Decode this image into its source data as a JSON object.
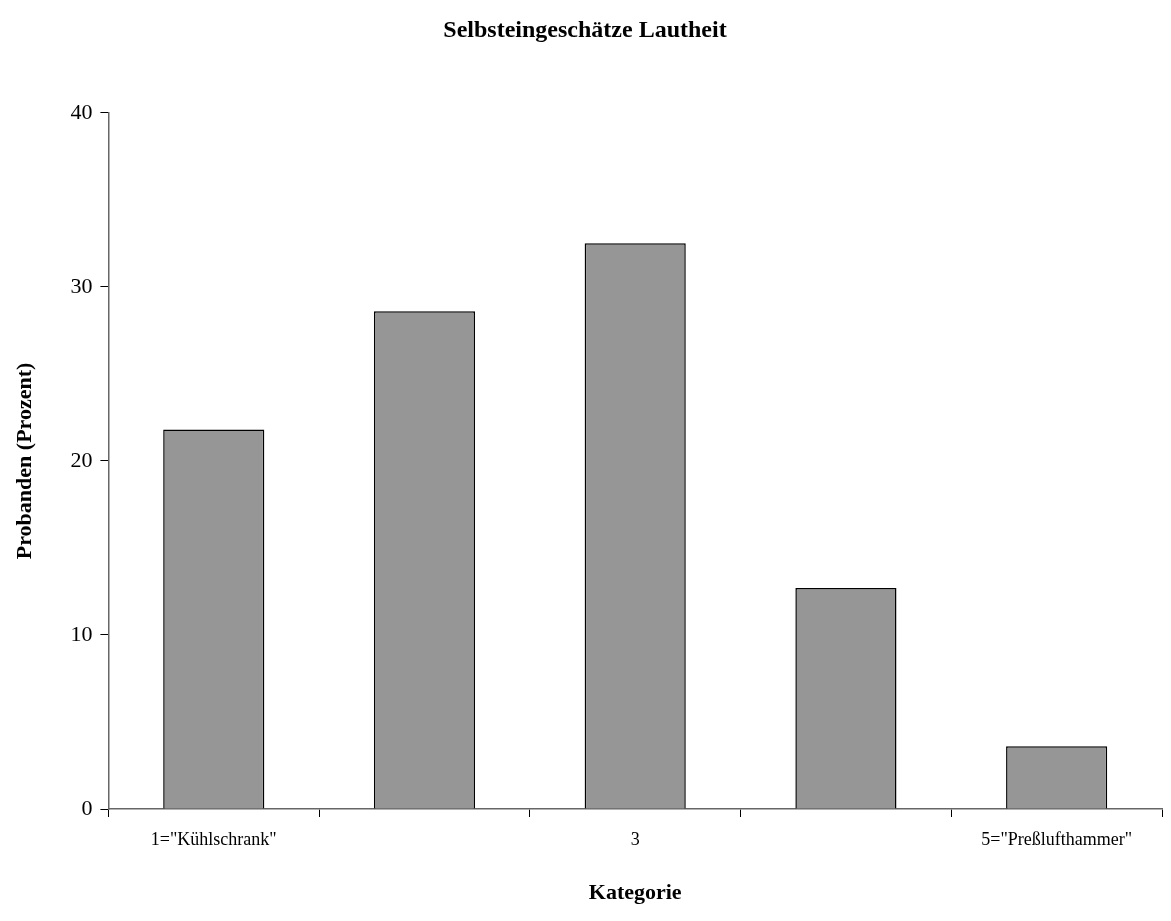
{
  "chart_data": {
    "type": "bar",
    "title": "Selbsteingeschätze Lautheit",
    "xlabel": "Kategorie",
    "ylabel": "Probanden (Prozent)",
    "categories": [
      "1=\"Kühlschrank\"",
      null,
      "3",
      null,
      "5=\"Preßlufthammer\""
    ],
    "values": [
      21.8,
      28.6,
      32.5,
      12.7,
      3.6
    ],
    "color": "#969696",
    "ylim": [
      0,
      40
    ],
    "yticks": [
      0,
      10,
      20,
      30,
      40
    ],
    "grid": false,
    "legend": false
  }
}
